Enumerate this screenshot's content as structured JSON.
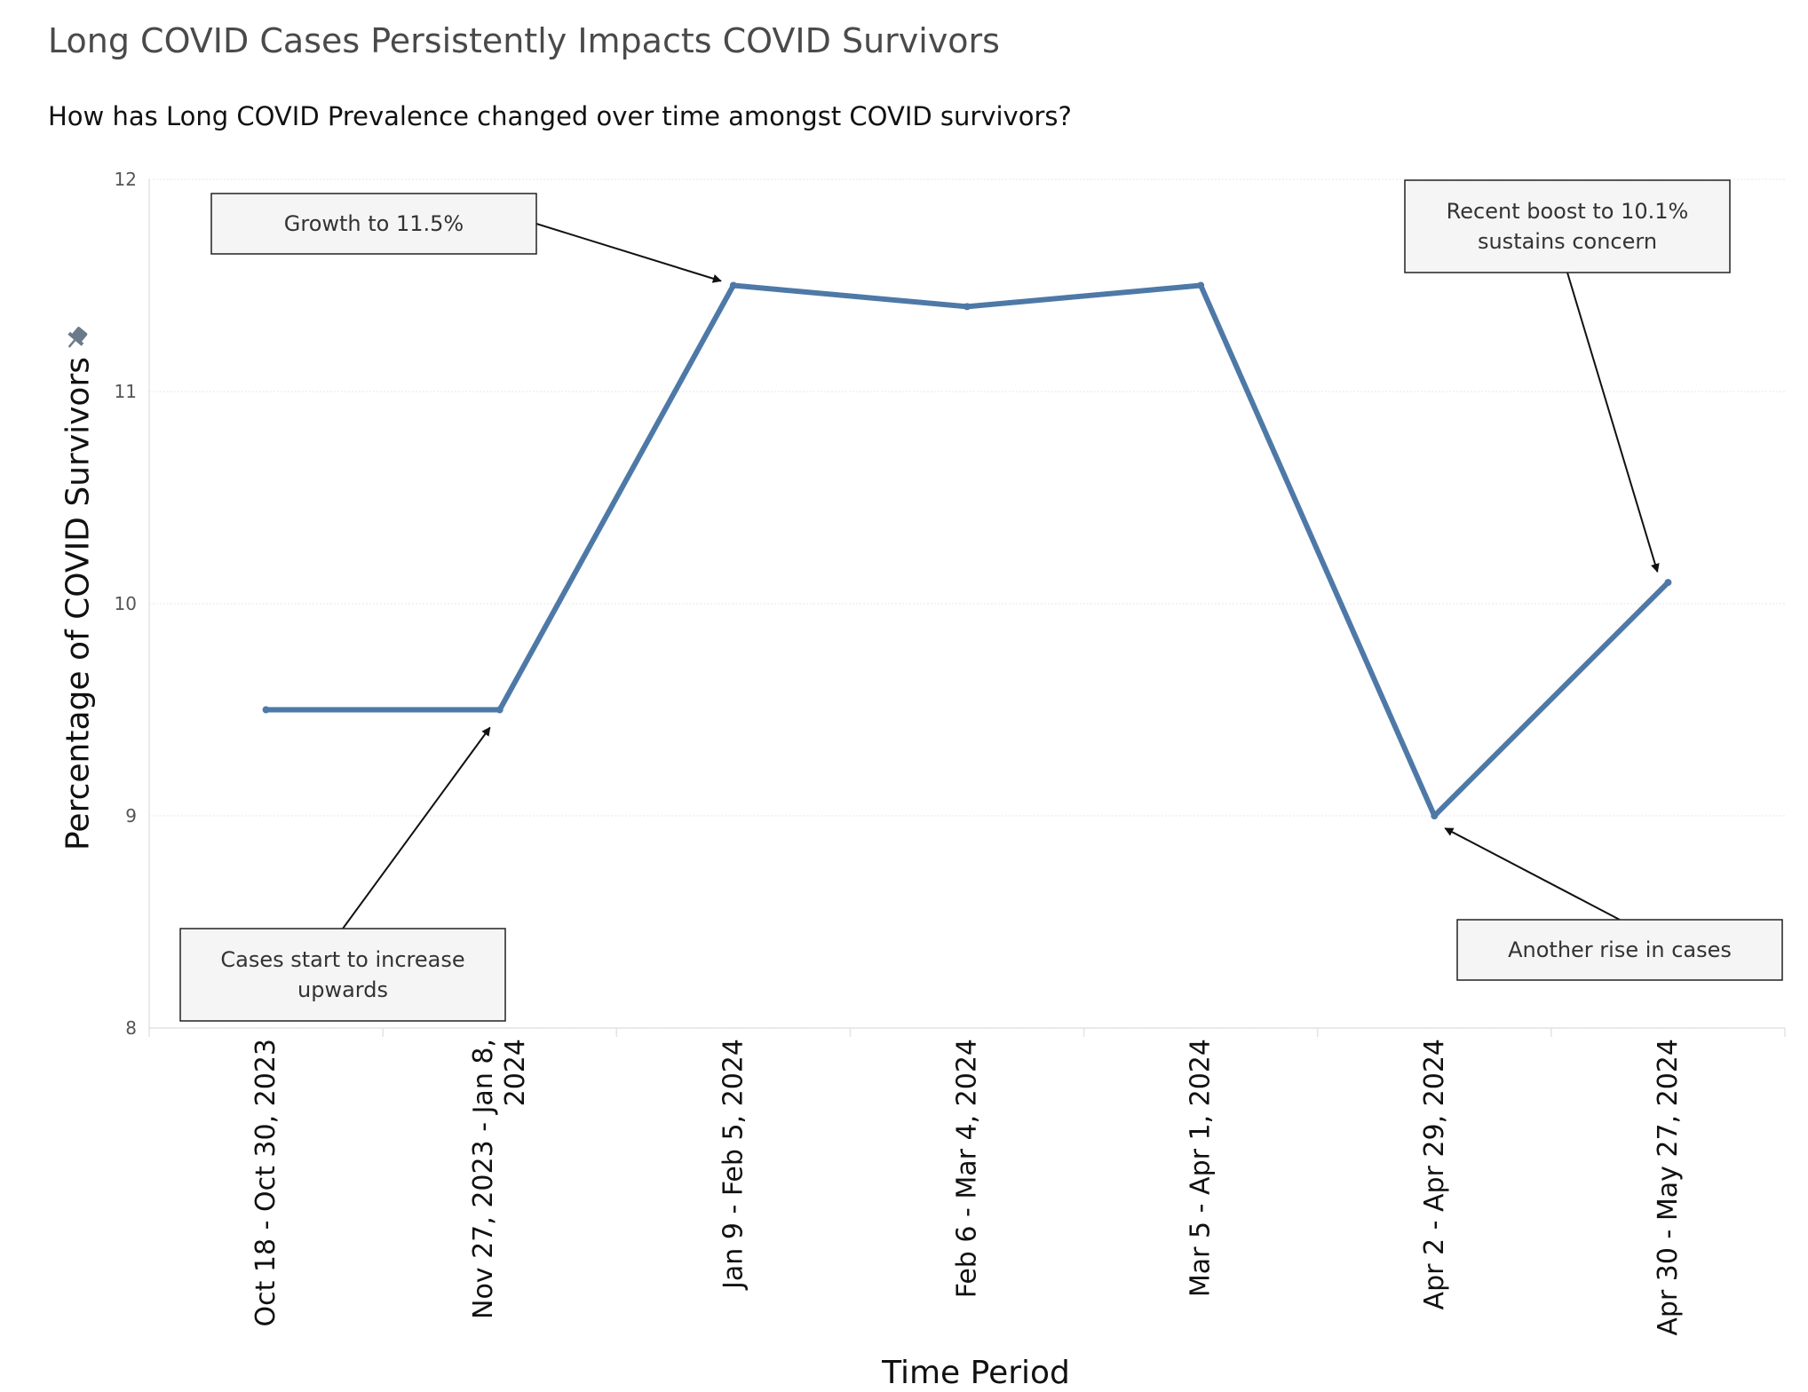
{
  "header": {
    "title": "Long COVID Cases Persistently Impacts COVID Survivors",
    "subtitle": "How has Long COVID Prevalence changed over time amongst COVID survivors?"
  },
  "icons": {
    "pin": "pin-icon"
  },
  "chart_data": {
    "type": "line",
    "xlabel": "Time Period",
    "ylabel": "Percentage of COVID Survivors",
    "ylim": [
      8,
      12
    ],
    "yticks": [
      "8",
      "9",
      "10",
      "11",
      "12"
    ],
    "grid": "horizontal",
    "categories": [
      [
        "Oct 18 - Oct 30, 2023"
      ],
      [
        "Nov 27, 2023 - Jan 8,",
        "2024"
      ],
      [
        "Jan 9 - Feb 5, 2024"
      ],
      [
        "Feb 6 - Mar 4, 2024"
      ],
      [
        "Mar 5 - Apr 1, 2024"
      ],
      [
        "Apr 2 - Apr 29, 2024"
      ],
      [
        "Apr 30 - May 27, 2024"
      ]
    ],
    "series": [
      {
        "color": "#4e79a7",
        "values": [
          9.5,
          9.5,
          11.5,
          11.4,
          11.5,
          9.0,
          10.1
        ]
      }
    ],
    "annotations": [
      {
        "lines": [
          "Growth to 11.5%"
        ],
        "point_index": 2
      },
      {
        "lines": [
          "Recent boost to 10.1%",
          "sustains concern"
        ],
        "point_index": 6
      },
      {
        "lines": [
          "Cases start to increase",
          "upwards"
        ],
        "point_index": 1
      },
      {
        "lines": [
          "Another rise in cases"
        ],
        "point_index": 5
      }
    ]
  }
}
